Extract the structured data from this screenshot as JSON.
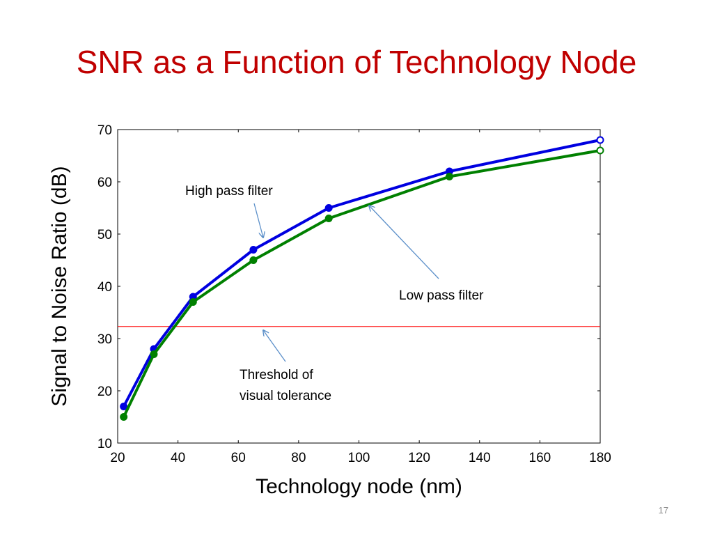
{
  "slide": {
    "title": "SNR as a Function of Technology Node",
    "page_number": "17"
  },
  "chart_data": {
    "type": "line",
    "xlabel": "Technology node (nm)",
    "ylabel": "Signal to Noise Ratio (dB)",
    "xlim": [
      20,
      180
    ],
    "ylim": [
      10,
      70
    ],
    "xticks": [
      20,
      40,
      60,
      80,
      100,
      120,
      140,
      160,
      180
    ],
    "yticks": [
      10,
      20,
      30,
      40,
      50,
      60,
      70
    ],
    "grid": false,
    "series": [
      {
        "name": "High pass filter",
        "color": "#0000e0",
        "x": [
          22,
          32,
          45,
          65,
          90,
          130,
          180
        ],
        "y": [
          17,
          28,
          38,
          47,
          55,
          62,
          68
        ]
      },
      {
        "name": "Low pass filter",
        "color": "#008000",
        "x": [
          22,
          32,
          45,
          65,
          90,
          130,
          180
        ],
        "y": [
          15,
          27,
          37,
          45,
          53,
          61,
          66
        ]
      }
    ],
    "threshold": {
      "label_line1": "Threshold of",
      "label_line2": "visual tolerance",
      "y": 32.3,
      "color": "#ff0000"
    },
    "annotations": {
      "arrow_color": "#5b8fc9",
      "high_pass_label": "High pass filter",
      "low_pass_label": "Low pass filter"
    }
  }
}
